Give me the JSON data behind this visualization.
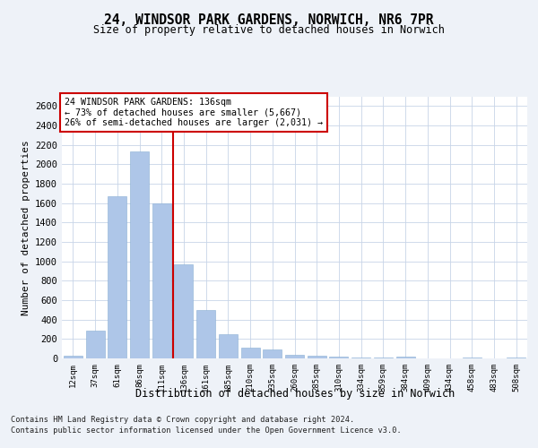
{
  "title1": "24, WINDSOR PARK GARDENS, NORWICH, NR6 7PR",
  "title2": "Size of property relative to detached houses in Norwich",
  "xlabel": "Distribution of detached houses by size in Norwich",
  "ylabel": "Number of detached properties",
  "categories": [
    "12sqm",
    "37sqm",
    "61sqm",
    "86sqm",
    "111sqm",
    "136sqm",
    "161sqm",
    "185sqm",
    "210sqm",
    "235sqm",
    "260sqm",
    "285sqm",
    "310sqm",
    "334sqm",
    "359sqm",
    "384sqm",
    "409sqm",
    "434sqm",
    "458sqm",
    "483sqm",
    "508sqm"
  ],
  "values": [
    25,
    290,
    1670,
    2130,
    1595,
    970,
    500,
    245,
    110,
    90,
    35,
    30,
    20,
    10,
    5,
    15,
    3,
    2,
    12,
    3,
    5
  ],
  "bar_color_normal": "#aec6e8",
  "vline_x": 4.5,
  "ylim": [
    0,
    2700
  ],
  "yticks": [
    0,
    200,
    400,
    600,
    800,
    1000,
    1200,
    1400,
    1600,
    1800,
    2000,
    2200,
    2400,
    2600
  ],
  "annotation_title": "24 WINDSOR PARK GARDENS: 136sqm",
  "annotation_line1": "← 73% of detached houses are smaller (5,667)",
  "annotation_line2": "26% of semi-detached houses are larger (2,031) →",
  "footnote1": "Contains HM Land Registry data © Crown copyright and database right 2024.",
  "footnote2": "Contains public sector information licensed under the Open Government Licence v3.0.",
  "background_color": "#eef2f8",
  "plot_bg_color": "#ffffff",
  "grid_color": "#c8d4e8"
}
